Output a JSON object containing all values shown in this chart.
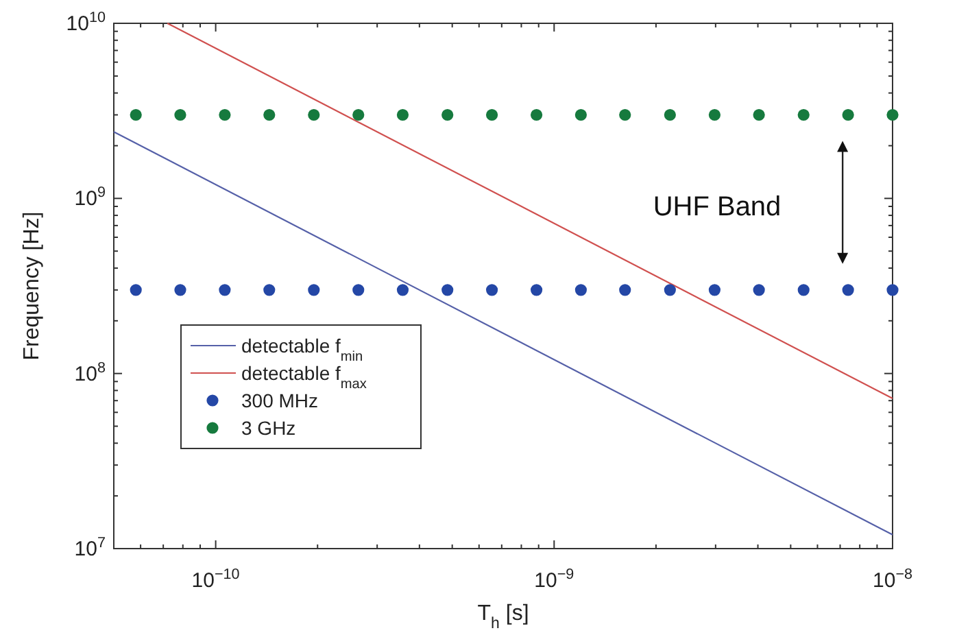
{
  "chart_data": {
    "type": "line",
    "xlabel": "T$_{h}$ [s]",
    "ylabel": "Frequency [Hz]",
    "log": "xy",
    "xlim": [
      5e-11,
      1e-08
    ],
    "ylim": [
      10000000.0,
      10000000000.0
    ],
    "xticks": [
      {
        "value": 1e-10,
        "label": "10$^{−10}$"
      },
      {
        "value": 1e-09,
        "label": "10$^{−9}$"
      },
      {
        "value": 1e-08,
        "label": "10$^{−8}$"
      }
    ],
    "yticks": [
      {
        "value": 10000000.0,
        "label": "10$^{7}$"
      },
      {
        "value": 100000000.0,
        "label": "10$^{8}$"
      },
      {
        "value": 1000000000.0,
        "label": "10$^{9}$"
      },
      {
        "value": 10000000000.0,
        "label": "10$^{10}$"
      }
    ],
    "grid": false,
    "legend": "bottom left",
    "line_style": "solid",
    "annotations": [
      "UHF Band"
    ],
    "series": [
      {
        "name": "detectable f$_{min}$",
        "color": "#5560a8",
        "x": [
          5e-11,
          1e-08
        ],
        "values": [
          2400000000.0,
          12000000.0
        ]
      },
      {
        "name": "detectable f$_{max}$",
        "color": "#d0504f",
        "x": [
          7.2e-11,
          1e-08
        ],
        "values": [
          10000000000.0,
          72000000.0
        ]
      },
      {
        "name": "300 MHz",
        "type": "scatter",
        "marker": "circle",
        "color": "#2447a6",
        "x": [
          5.81e-11,
          7.86e-11,
          1.064e-10,
          1.44e-10,
          1.95e-10,
          2.64e-10,
          3.57e-10,
          4.84e-10,
          6.55e-10,
          8.87e-10,
          1.2e-09,
          1.62e-09,
          2.2e-09,
          2.98e-09,
          4.03e-09,
          5.46e-09,
          7.39e-09,
          1e-08
        ],
        "values": [
          300000000.0,
          300000000.0,
          300000000.0,
          300000000.0,
          300000000.0,
          300000000.0,
          300000000.0,
          300000000.0,
          300000000.0,
          300000000.0,
          300000000.0,
          300000000.0,
          300000000.0,
          300000000.0,
          300000000.0,
          300000000.0,
          300000000.0,
          300000000.0
        ]
      },
      {
        "name": "3 GHz",
        "type": "scatter",
        "marker": "circle",
        "color": "#167a3e",
        "x": [
          5.81e-11,
          7.86e-11,
          1.064e-10,
          1.44e-10,
          1.95e-10,
          2.64e-10,
          3.57e-10,
          4.84e-10,
          6.55e-10,
          8.87e-10,
          1.2e-09,
          1.62e-09,
          2.2e-09,
          2.98e-09,
          4.03e-09,
          5.46e-09,
          7.39e-09,
          1e-08
        ],
        "values": [
          3000000000.0,
          3000000000.0,
          3000000000.0,
          3000000000.0,
          3000000000.0,
          3000000000.0,
          3000000000.0,
          3000000000.0,
          3000000000.0,
          3000000000.0,
          3000000000.0,
          3000000000.0,
          3000000000.0,
          3000000000.0,
          3000000000.0,
          3000000000.0,
          3000000000.0,
          3000000000.0
        ]
      }
    ]
  }
}
